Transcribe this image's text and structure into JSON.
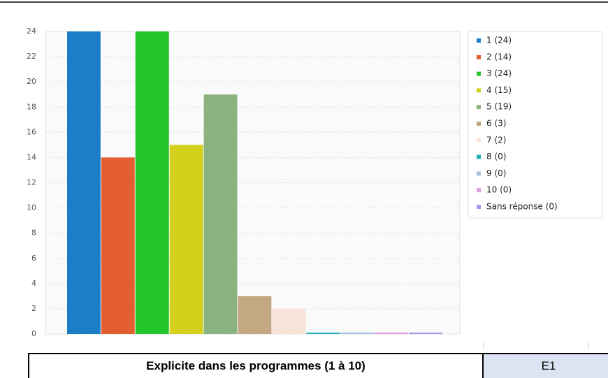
{
  "chart_data": {
    "type": "bar",
    "series": [
      {
        "name": "1 (24)",
        "color": "#1a7fc7",
        "values": [
          24
        ]
      },
      {
        "name": "2 (14)",
        "color": "#e45d33",
        "values": [
          14
        ]
      },
      {
        "name": "3 (24)",
        "color": "#22c52a",
        "values": [
          24
        ]
      },
      {
        "name": "4 (15)",
        "color": "#d4d11d",
        "values": [
          15
        ]
      },
      {
        "name": "5 (19)",
        "color": "#8bb37f",
        "values": [
          19
        ]
      },
      {
        "name": "6 (3)",
        "color": "#c4a882",
        "values": [
          3
        ]
      },
      {
        "name": "7 (2)",
        "color": "#f8e3d9",
        "values": [
          2
        ]
      },
      {
        "name": "8 (0)",
        "color": "#22b0b0",
        "values": [
          0
        ]
      },
      {
        "name": "9 (0)",
        "color": "#a4c0dd",
        "values": [
          0
        ]
      },
      {
        "name": "10 (0)",
        "color": "#d99fdf",
        "values": [
          0
        ]
      },
      {
        "name": "Sans réponse (0)",
        "color": "#9b9bf0",
        "values": [
          0
        ]
      }
    ],
    "ylim": [
      0,
      24
    ],
    "yticks": [
      0,
      2,
      4,
      6,
      8,
      10,
      12,
      14,
      16,
      18,
      20,
      22,
      24
    ],
    "grid": true,
    "legend": "right"
  },
  "table": {
    "rows": [
      [
        "Explicite dans les programmes (1 à 10)",
        "E1"
      ]
    ]
  }
}
